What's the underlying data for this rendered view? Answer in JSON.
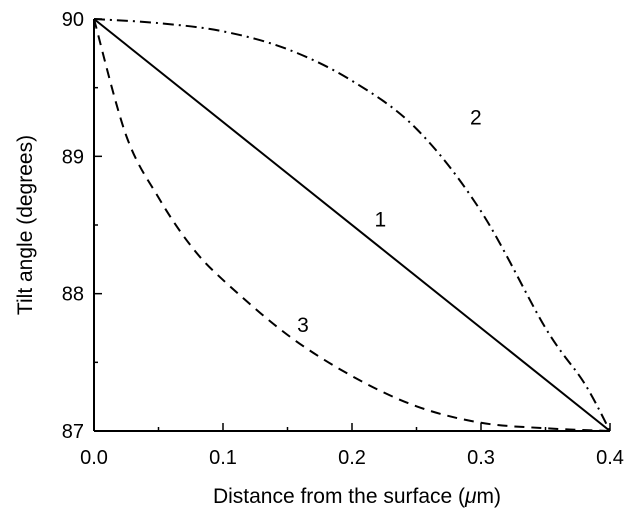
{
  "chart_data": {
    "type": "line",
    "xlabel_prefix": "Distance from the surface (",
    "xlabel_unit": "μ",
    "xlabel_suffix": "m)",
    "ylabel": "Tilt angle (degrees)",
    "xlim": [
      0.0,
      0.4
    ],
    "ylim": [
      87,
      90
    ],
    "x_ticks": [
      0.0,
      0.1,
      0.2,
      0.3,
      0.4
    ],
    "x_tick_labels": [
      "0.0",
      "0.1",
      "0.2",
      "0.3",
      "0.4"
    ],
    "y_ticks": [
      87,
      88,
      89,
      90
    ],
    "y_tick_labels": [
      "87",
      "88",
      "89",
      "90"
    ],
    "grid": false,
    "legend": "none",
    "series": [
      {
        "label": "1",
        "style": "solid",
        "color": "#000000",
        "x": [
          0.0,
          0.4
        ],
        "y": [
          90.0,
          87.0
        ],
        "label_at": [
          0.222,
          88.49
        ]
      },
      {
        "label": "2",
        "style": "dash-dot",
        "color": "#000000",
        "x": [
          0.0,
          0.05,
          0.1,
          0.15,
          0.2,
          0.25,
          0.3,
          0.35,
          0.38,
          0.4
        ],
        "y": [
          90.0,
          89.97,
          89.91,
          89.78,
          89.55,
          89.2,
          88.6,
          87.75,
          87.35,
          87.0
        ],
        "label_at": [
          0.296,
          89.23
        ]
      },
      {
        "label": "3",
        "style": "dashed",
        "color": "#000000",
        "x": [
          0.0,
          0.025,
          0.05,
          0.075,
          0.1,
          0.15,
          0.2,
          0.25,
          0.3,
          0.35,
          0.4
        ],
        "y": [
          90.0,
          89.15,
          88.7,
          88.35,
          88.1,
          87.7,
          87.4,
          87.18,
          87.06,
          87.02,
          87.0
        ],
        "label_at": [
          0.162,
          87.72
        ]
      }
    ]
  }
}
